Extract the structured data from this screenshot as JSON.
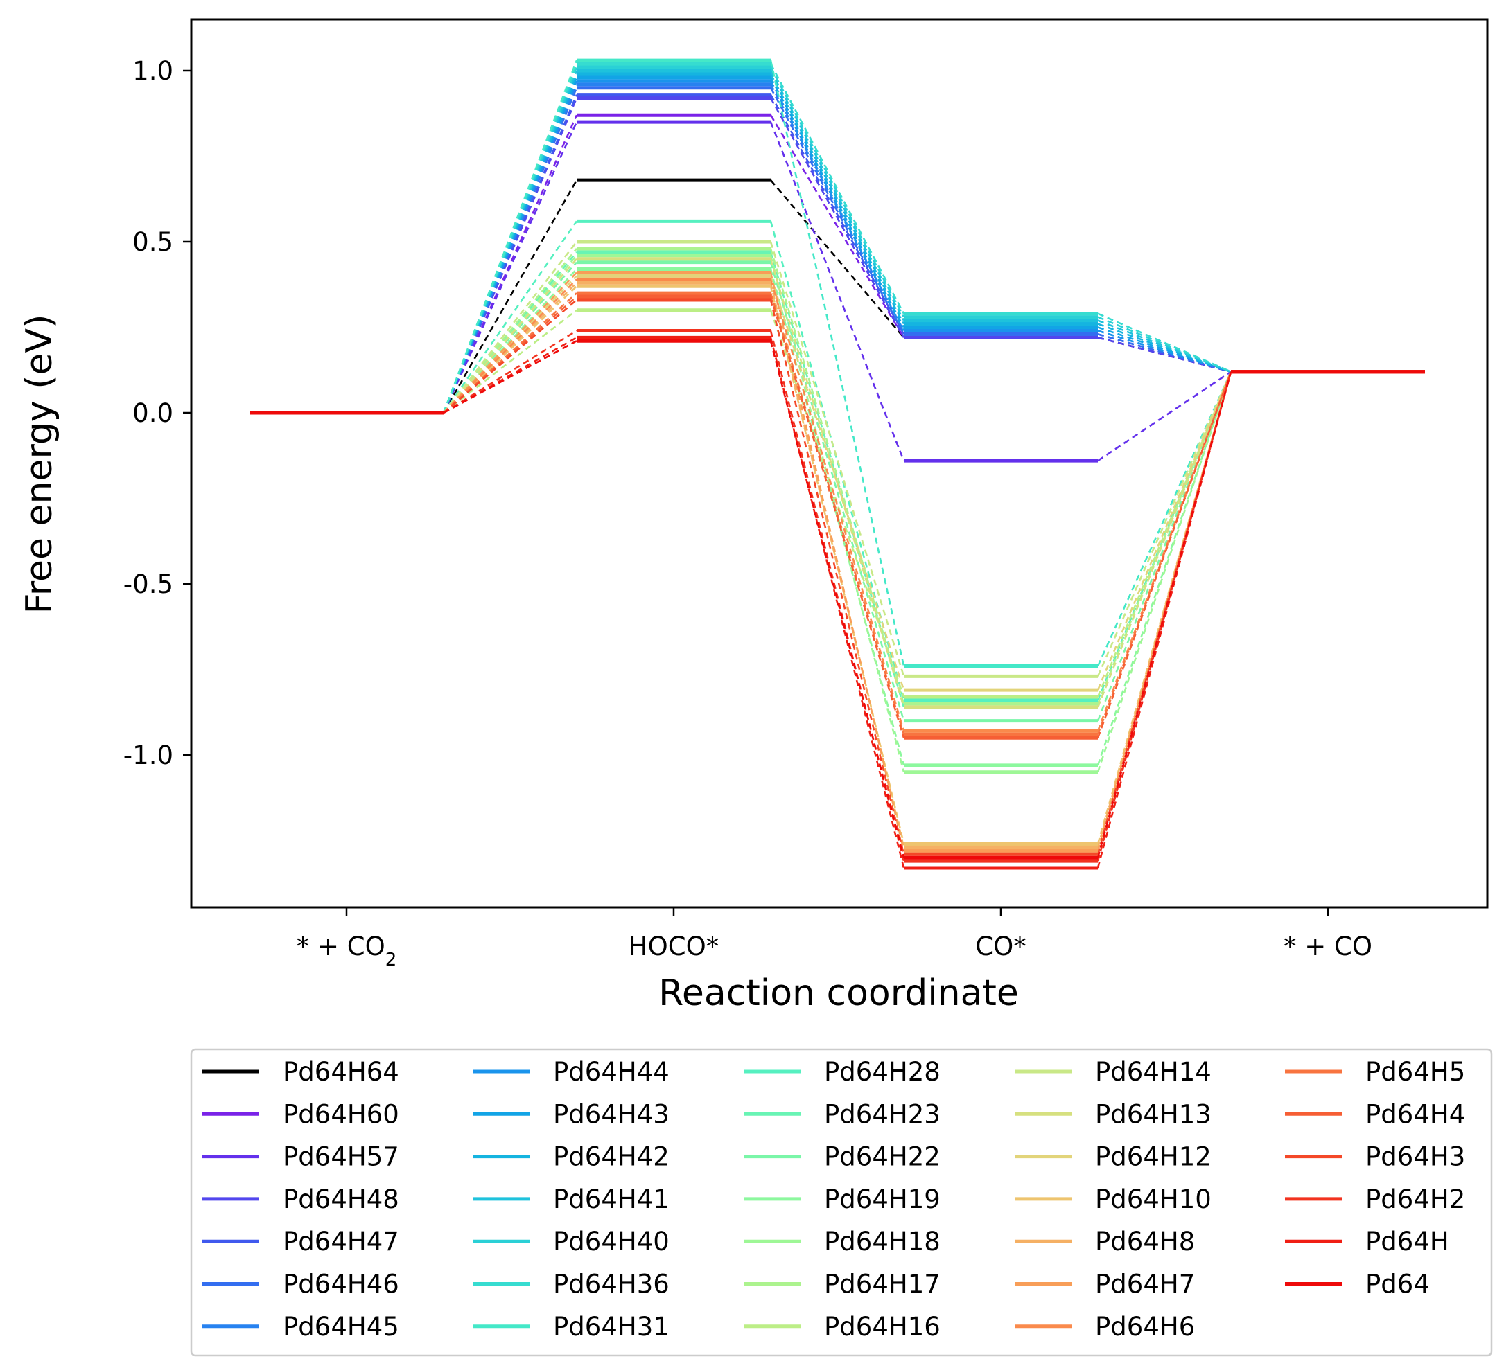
{
  "chart_data": {
    "type": "line",
    "xlabel": "Reaction coordinate",
    "ylabel": "Free energy (eV)",
    "ylim": [
      -1.44,
      1.15
    ],
    "categories": [
      {
        "text": "* + CO",
        "sub": "2"
      },
      {
        "text": "HOCO*",
        "sub": ""
      },
      {
        "text": "CO*",
        "sub": ""
      },
      {
        "text": "* + CO",
        "sub": ""
      }
    ],
    "yticks": [
      {
        "value": 1.0,
        "label": "1.0"
      },
      {
        "value": 0.5,
        "label": "0.5"
      },
      {
        "value": 0.0,
        "label": "0.0"
      },
      {
        "value": -0.5,
        "label": "-0.5"
      },
      {
        "value": -1.0,
        "label": "-1.0"
      }
    ],
    "grid": false,
    "legend_position": "bottom",
    "legend_columns": 5,
    "series": [
      {
        "name": "Pd64H64",
        "color": "#000000",
        "values": [
          0,
          0.68,
          0.22,
          0.12
        ]
      },
      {
        "name": "Pd64H60",
        "color": "#7a22e8",
        "values": [
          0,
          0.87,
          0.22,
          0.12
        ]
      },
      {
        "name": "Pd64H57",
        "color": "#6330ec",
        "values": [
          0,
          0.85,
          -0.14,
          0.12
        ]
      },
      {
        "name": "Pd64H48",
        "color": "#5246ee",
        "values": [
          0,
          0.92,
          0.22,
          0.12
        ]
      },
      {
        "name": "Pd64H47",
        "color": "#4059ee",
        "values": [
          0,
          0.93,
          0.23,
          0.12
        ]
      },
      {
        "name": "Pd64H46",
        "color": "#336ef0",
        "values": [
          0,
          0.95,
          0.23,
          0.12
        ]
      },
      {
        "name": "Pd64H45",
        "color": "#2782f0",
        "values": [
          0,
          0.96,
          0.24,
          0.12
        ]
      },
      {
        "name": "Pd64H44",
        "color": "#1a94ec",
        "values": [
          0,
          0.97,
          0.24,
          0.12
        ]
      },
      {
        "name": "Pd64H43",
        "color": "#12a4e6",
        "values": [
          0,
          0.98,
          0.25,
          0.12
        ]
      },
      {
        "name": "Pd64H42",
        "color": "#15b4e0",
        "values": [
          0,
          0.99,
          0.26,
          0.12
        ]
      },
      {
        "name": "Pd64H41",
        "color": "#1ec2dc",
        "values": [
          0,
          1.0,
          0.27,
          0.12
        ]
      },
      {
        "name": "Pd64H40",
        "color": "#2ad0d6",
        "values": [
          0,
          1.01,
          0.28,
          0.12
        ]
      },
      {
        "name": "Pd64H36",
        "color": "#36dcd0",
        "values": [
          0,
          1.02,
          0.29,
          0.12
        ]
      },
      {
        "name": "Pd64H31",
        "color": "#44e8c8",
        "values": [
          0,
          1.03,
          -0.74,
          0.12
        ]
      },
      {
        "name": "Pd64H28",
        "color": "#56f0c0",
        "values": [
          0,
          0.56,
          -0.84,
          0.12
        ]
      },
      {
        "name": "Pd64H23",
        "color": "#68f4b4",
        "values": [
          0,
          0.47,
          -0.86,
          0.12
        ]
      },
      {
        "name": "Pd64H22",
        "color": "#7af6a8",
        "values": [
          0,
          0.44,
          -0.9,
          0.12
        ]
      },
      {
        "name": "Pd64H19",
        "color": "#8cf89e",
        "values": [
          0,
          0.42,
          -1.03,
          0.12
        ]
      },
      {
        "name": "Pd64H18",
        "color": "#9ef796",
        "values": [
          0,
          0.46,
          -1.05,
          0.12
        ]
      },
      {
        "name": "Pd64H17",
        "color": "#acf38e",
        "values": [
          0,
          0.48,
          -0.85,
          0.12
        ]
      },
      {
        "name": "Pd64H16",
        "color": "#bcee86",
        "values": [
          0,
          0.3,
          -0.83,
          0.12
        ]
      },
      {
        "name": "Pd64H14",
        "color": "#c9e887",
        "values": [
          0,
          0.5,
          -0.77,
          0.12
        ]
      },
      {
        "name": "Pd64H13",
        "color": "#d6e07f",
        "values": [
          0,
          0.45,
          -0.86,
          0.12
        ]
      },
      {
        "name": "Pd64H12",
        "color": "#e2d47a",
        "values": [
          0,
          0.4,
          -0.81,
          0.12
        ]
      },
      {
        "name": "Pd64H10",
        "color": "#eec46e",
        "values": [
          0,
          0.37,
          -1.26,
          0.12
        ]
      },
      {
        "name": "Pd64H8",
        "color": "#f5b064",
        "values": [
          0,
          0.38,
          -1.27,
          0.12
        ]
      },
      {
        "name": "Pd64H7",
        "color": "#f89e58",
        "values": [
          0,
          0.41,
          -1.28,
          0.12
        ]
      },
      {
        "name": "Pd64H6",
        "color": "#fa8a4c",
        "values": [
          0,
          0.39,
          -0.93,
          0.12
        ]
      },
      {
        "name": "Pd64H5",
        "color": "#f87440",
        "values": [
          0,
          0.35,
          -0.94,
          0.12
        ]
      },
      {
        "name": "Pd64H4",
        "color": "#f65e34",
        "values": [
          0,
          0.34,
          -0.95,
          0.12
        ]
      },
      {
        "name": "Pd64H3",
        "color": "#f44828",
        "values": [
          0,
          0.33,
          -1.29,
          0.12
        ]
      },
      {
        "name": "Pd64H2",
        "color": "#f2321e",
        "values": [
          0,
          0.24,
          -1.31,
          0.12
        ]
      },
      {
        "name": "Pd64H",
        "color": "#f01e14",
        "values": [
          0,
          0.22,
          -1.33,
          0.12
        ]
      },
      {
        "name": "Pd64",
        "color": "#ee0a0a",
        "values": [
          0,
          0.21,
          -1.3,
          0.12
        ]
      }
    ]
  }
}
